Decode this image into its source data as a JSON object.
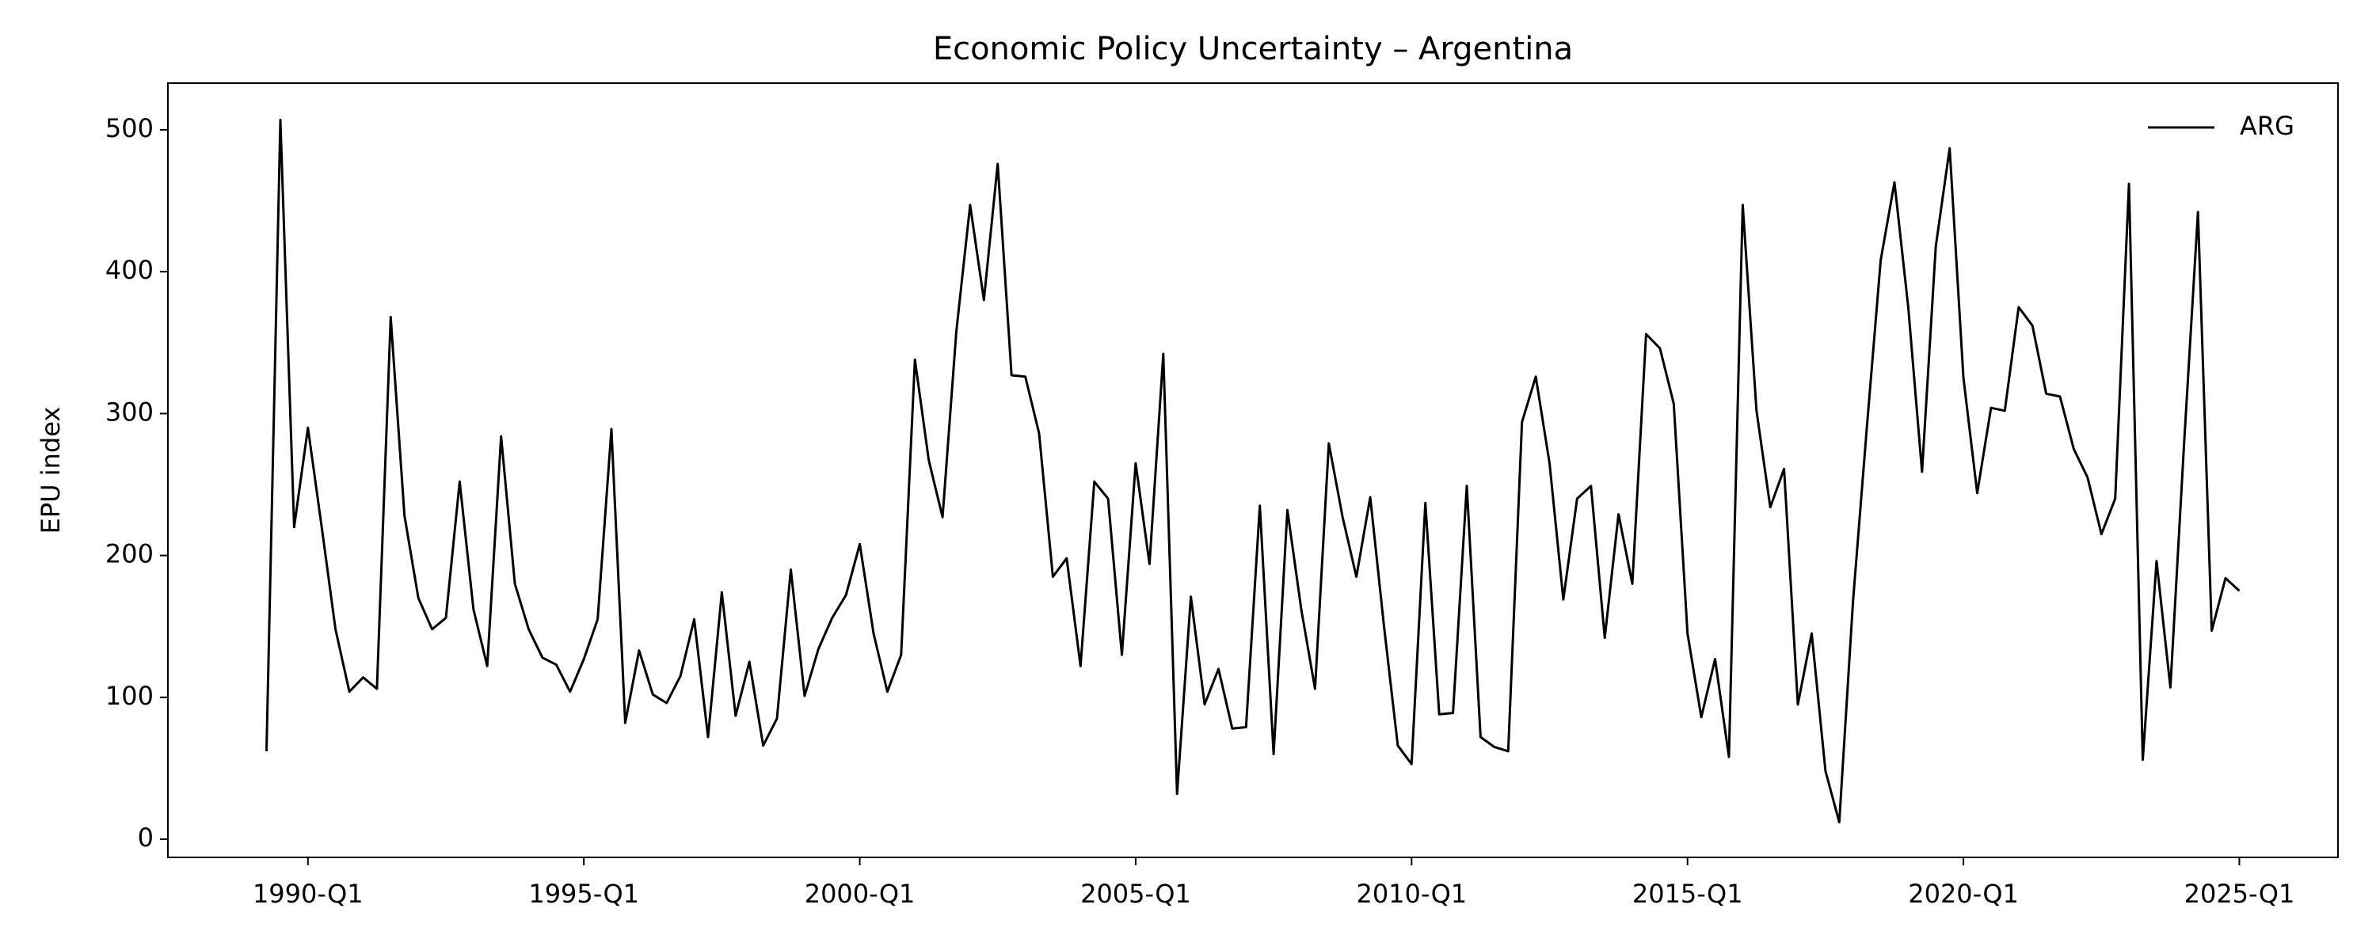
{
  "chart_data": {
    "type": "line",
    "title": "Economic Policy Uncertainty – Argentina",
    "y_label": "EPU index",
    "categories": [
      "1989-Q2",
      "1989-Q3",
      "1989-Q4",
      "1990-Q1",
      "1990-Q2",
      "1990-Q3",
      "1990-Q4",
      "1991-Q1",
      "1991-Q2",
      "1991-Q3",
      "1991-Q4",
      "1992-Q1",
      "1992-Q2",
      "1992-Q3",
      "1992-Q4",
      "1993-Q1",
      "1993-Q2",
      "1993-Q3",
      "1993-Q4",
      "1994-Q1",
      "1994-Q2",
      "1994-Q3",
      "1994-Q4",
      "1995-Q1",
      "1995-Q2",
      "1995-Q3",
      "1995-Q4",
      "1996-Q1",
      "1996-Q2",
      "1996-Q3",
      "1996-Q4",
      "1997-Q1",
      "1997-Q2",
      "1997-Q3",
      "1997-Q4",
      "1998-Q1",
      "1998-Q2",
      "1998-Q3",
      "1998-Q4",
      "1999-Q1",
      "1999-Q2",
      "1999-Q3",
      "1999-Q4",
      "2000-Q1",
      "2000-Q2",
      "2000-Q3",
      "2000-Q4",
      "2001-Q1",
      "2001-Q2",
      "2001-Q3",
      "2001-Q4",
      "2002-Q1",
      "2002-Q2",
      "2002-Q3",
      "2002-Q4",
      "2003-Q1",
      "2003-Q2",
      "2003-Q3",
      "2003-Q4",
      "2004-Q1",
      "2004-Q2",
      "2004-Q3",
      "2004-Q4",
      "2005-Q1",
      "2005-Q2",
      "2005-Q3",
      "2005-Q4",
      "2006-Q1",
      "2006-Q2",
      "2006-Q3",
      "2006-Q4",
      "2007-Q1",
      "2007-Q2",
      "2007-Q3",
      "2007-Q4",
      "2008-Q1",
      "2008-Q2",
      "2008-Q3",
      "2008-Q4",
      "2009-Q1",
      "2009-Q2",
      "2009-Q3",
      "2009-Q4",
      "2010-Q1",
      "2010-Q2",
      "2010-Q3",
      "2010-Q4",
      "2011-Q1",
      "2011-Q2",
      "2011-Q3",
      "2011-Q4",
      "2012-Q1",
      "2012-Q2",
      "2012-Q3",
      "2012-Q4",
      "2013-Q1",
      "2013-Q2",
      "2013-Q3",
      "2013-Q4",
      "2014-Q1",
      "2014-Q2",
      "2014-Q3",
      "2014-Q4",
      "2015-Q1",
      "2015-Q2",
      "2015-Q3",
      "2015-Q4",
      "2016-Q1",
      "2016-Q2",
      "2016-Q3",
      "2016-Q4",
      "2017-Q1",
      "2017-Q2",
      "2017-Q3",
      "2017-Q4",
      "2018-Q1",
      "2018-Q2",
      "2018-Q3",
      "2018-Q4",
      "2019-Q1",
      "2019-Q2",
      "2019-Q3",
      "2019-Q4",
      "2020-Q1",
      "2020-Q2",
      "2020-Q3",
      "2020-Q4",
      "2021-Q1",
      "2021-Q2",
      "2021-Q3",
      "2021-Q4",
      "2022-Q1",
      "2022-Q2",
      "2022-Q3",
      "2022-Q4",
      "2023-Q1",
      "2023-Q2",
      "2023-Q3",
      "2023-Q4",
      "2024-Q1",
      "2024-Q2",
      "2024-Q3",
      "2024-Q4",
      "2025-Q1"
    ],
    "series": [
      {
        "name": "ARG",
        "color": "#000000",
        "values": [
          62,
          507,
          220,
          290,
          220,
          148,
          104,
          114,
          106,
          368,
          228,
          170,
          148,
          156,
          252,
          162,
          122,
          284,
          180,
          148,
          128,
          123,
          104,
          127,
          155,
          289,
          82,
          133,
          102,
          96,
          115,
          155,
          72,
          174,
          87,
          125,
          66,
          85,
          190,
          101,
          134,
          156,
          172,
          208,
          145,
          104,
          130,
          338,
          267,
          227,
          358,
          447,
          380,
          476,
          327,
          326,
          286,
          185,
          198,
          122,
          252,
          240,
          130,
          265,
          194,
          342,
          32,
          171,
          95,
          120,
          78,
          79,
          235,
          60,
          232,
          162,
          106,
          279,
          227,
          185,
          241,
          150,
          66,
          53,
          237,
          88,
          89,
          249,
          72,
          65,
          62,
          294,
          326,
          265,
          169,
          240,
          249,
          142,
          229,
          180,
          356,
          346,
          307,
          145,
          86,
          127,
          58,
          447,
          302,
          234,
          261,
          95,
          145,
          48,
          12,
          168,
          290,
          408,
          463,
          375,
          259,
          418,
          487,
          325,
          244,
          304,
          302,
          375,
          362,
          314,
          312,
          275,
          255,
          215,
          240,
          462,
          56,
          196,
          107,
          280,
          442,
          147,
          184,
          175
        ]
      }
    ],
    "xticks": [
      "1990-Q1",
      "1995-Q1",
      "2000-Q1",
      "2005-Q1",
      "2010-Q1",
      "2015-Q1",
      "2020-Q1",
      "2025-Q1"
    ],
    "ylim": [
      -12.8,
      532.9
    ],
    "yticks": [
      0,
      100,
      200,
      300,
      400,
      500
    ],
    "legend": "upper right",
    "grid": false
  }
}
